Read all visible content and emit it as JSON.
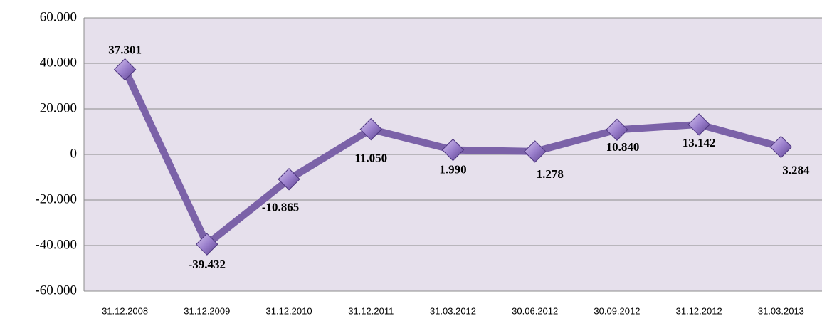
{
  "chart_data": {
    "type": "line",
    "categories": [
      "31.12.2008",
      "31.12.2009",
      "31.12.2010",
      "31.12.2011",
      "31.03.2012",
      "30.06.2012",
      "30.09.2012",
      "31.12.2012",
      "31.03.2013"
    ],
    "series": [
      {
        "color": "#7b62a8",
        "values": [
          37301,
          -39432,
          -10865,
          11050,
          1990,
          1278,
          10840,
          13142,
          3284
        ],
        "value_labels": [
          "37.301",
          "-39.432",
          "-10.865",
          "11.050",
          "1.990",
          "1.278",
          "10.840",
          "13.142",
          "3.284"
        ]
      }
    ],
    "ylim": [
      -60000,
      60000
    ],
    "yticks": [
      {
        "value": -60000,
        "label": "-60.000"
      },
      {
        "value": -40000,
        "label": "-40.000"
      },
      {
        "value": -20000,
        "label": "-20.000"
      },
      0,
      {
        "value": 20000,
        "label": "20.000"
      },
      {
        "value": 40000,
        "label": "40.000"
      },
      {
        "value": 60000,
        "label": "60.000"
      }
    ],
    "grid": true
  }
}
